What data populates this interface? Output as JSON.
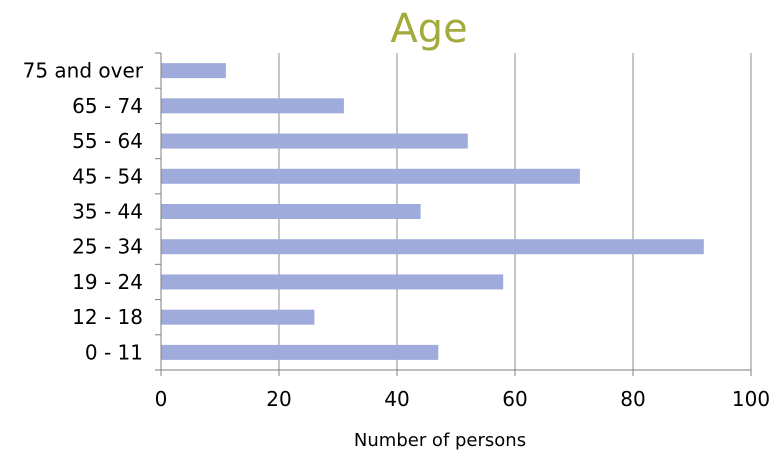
{
  "chart_data": {
    "type": "bar",
    "orientation": "horizontal",
    "title": "Age",
    "xlabel": "Number of persons",
    "ylabel": "",
    "categories": [
      "0 - 11",
      "12 - 18",
      "19 - 24",
      "25 - 34",
      "35 - 44",
      "45 - 54",
      "55 - 64",
      "65 - 74",
      "75 and over"
    ],
    "values": [
      47,
      26,
      58,
      92,
      44,
      71,
      52,
      31,
      11
    ],
    "xlim": [
      0,
      100
    ],
    "xticks": [
      "0",
      "20",
      "40",
      "60",
      "80",
      "100"
    ],
    "grid": "vertical",
    "legend": "none",
    "bar_color": "#9fabda",
    "title_color": "#a3ab3c",
    "grid_color": "#8c8c8c",
    "axis_color": "#7f7f7f"
  }
}
